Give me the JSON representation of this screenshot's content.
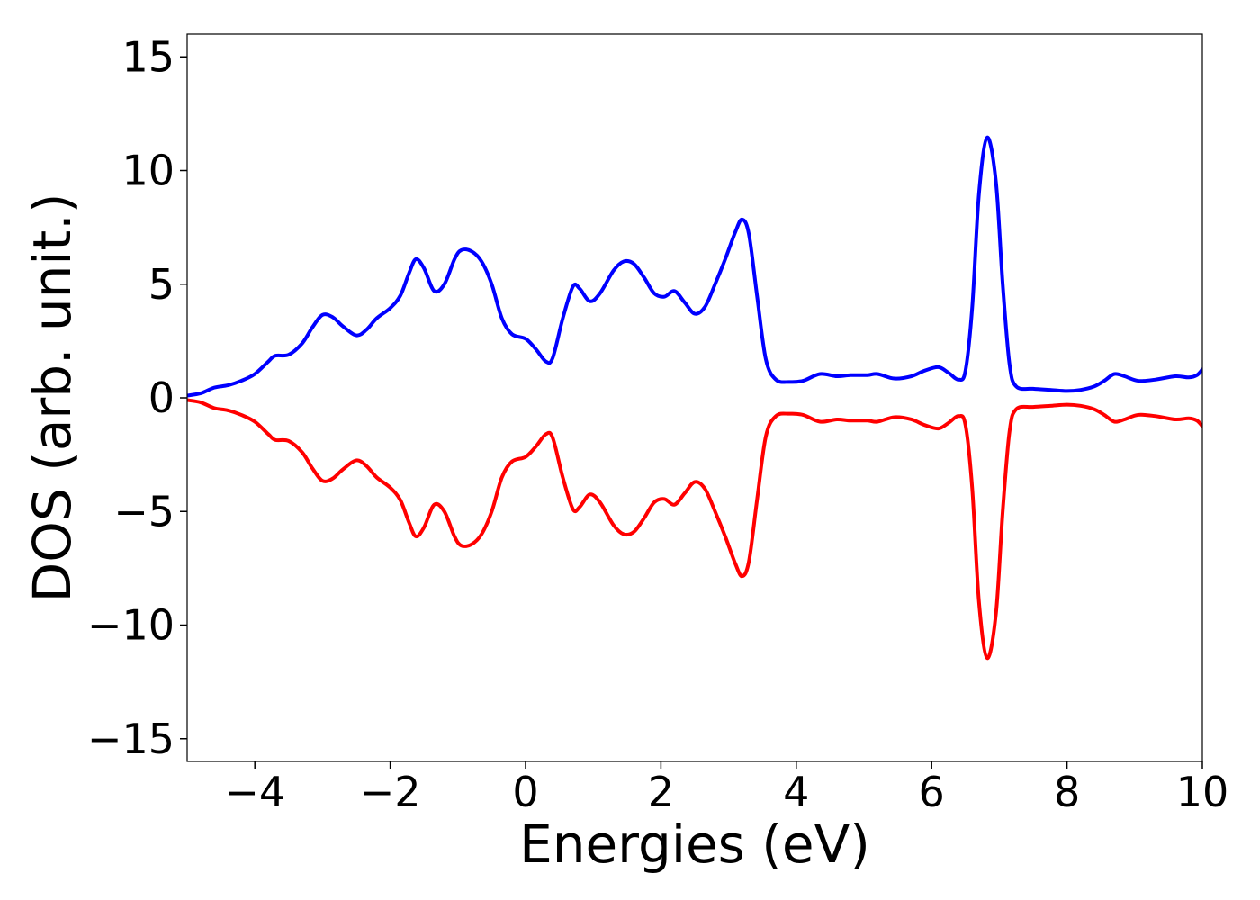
{
  "chart_data": {
    "type": "line",
    "title": "",
    "xlabel": "Energies (eV)",
    "ylabel": "DOS (arb. unit.)",
    "xlim": [
      -5,
      10
    ],
    "ylim": [
      -16,
      16
    ],
    "xticks": [
      -4,
      -2,
      0,
      2,
      4,
      6,
      8,
      10
    ],
    "xtick_labels": [
      "−4",
      "−2",
      "0",
      "2",
      "4",
      "6",
      "8",
      "10"
    ],
    "yticks": [
      15,
      10,
      5,
      0,
      -5,
      -10,
      -15
    ],
    "ytick_labels": [
      "15",
      "10",
      "5",
      "0",
      "−5",
      "−10",
      "−15"
    ],
    "grid": false,
    "legend": "none",
    "series": [
      {
        "color": "#0000ff",
        "points": [
          [
            -5.0,
            0.1
          ],
          [
            -4.8,
            0.2
          ],
          [
            -4.6,
            0.45
          ],
          [
            -4.4,
            0.55
          ],
          [
            -4.2,
            0.75
          ],
          [
            -4.0,
            1.05
          ],
          [
            -3.8,
            1.6
          ],
          [
            -3.7,
            1.85
          ],
          [
            -3.5,
            1.9
          ],
          [
            -3.3,
            2.4
          ],
          [
            -3.15,
            3.1
          ],
          [
            -3.0,
            3.65
          ],
          [
            -2.85,
            3.55
          ],
          [
            -2.7,
            3.15
          ],
          [
            -2.5,
            2.75
          ],
          [
            -2.35,
            3.0
          ],
          [
            -2.2,
            3.5
          ],
          [
            -2.0,
            3.95
          ],
          [
            -1.85,
            4.5
          ],
          [
            -1.72,
            5.5
          ],
          [
            -1.62,
            6.1
          ],
          [
            -1.5,
            5.7
          ],
          [
            -1.35,
            4.7
          ],
          [
            -1.2,
            5.0
          ],
          [
            -1.05,
            6.1
          ],
          [
            -0.95,
            6.5
          ],
          [
            -0.8,
            6.45
          ],
          [
            -0.65,
            6.0
          ],
          [
            -0.5,
            5.0
          ],
          [
            -0.35,
            3.5
          ],
          [
            -0.2,
            2.8
          ],
          [
            0.0,
            2.6
          ],
          [
            0.15,
            2.15
          ],
          [
            0.3,
            1.6
          ],
          [
            0.4,
            1.75
          ],
          [
            0.55,
            3.5
          ],
          [
            0.7,
            4.9
          ],
          [
            0.8,
            4.8
          ],
          [
            0.95,
            4.25
          ],
          [
            1.1,
            4.6
          ],
          [
            1.3,
            5.6
          ],
          [
            1.45,
            6.0
          ],
          [
            1.6,
            5.9
          ],
          [
            1.75,
            5.3
          ],
          [
            1.9,
            4.6
          ],
          [
            2.05,
            4.45
          ],
          [
            2.2,
            4.7
          ],
          [
            2.35,
            4.2
          ],
          [
            2.5,
            3.7
          ],
          [
            2.65,
            4.0
          ],
          [
            2.8,
            5.0
          ],
          [
            2.95,
            6.1
          ],
          [
            3.1,
            7.3
          ],
          [
            3.2,
            7.85
          ],
          [
            3.3,
            7.2
          ],
          [
            3.42,
            4.5
          ],
          [
            3.55,
            1.7
          ],
          [
            3.7,
            0.8
          ],
          [
            3.9,
            0.7
          ],
          [
            4.1,
            0.75
          ],
          [
            4.35,
            1.05
          ],
          [
            4.6,
            0.95
          ],
          [
            4.8,
            1.0
          ],
          [
            5.05,
            1.0
          ],
          [
            5.2,
            1.05
          ],
          [
            5.45,
            0.85
          ],
          [
            5.7,
            0.95
          ],
          [
            5.9,
            1.2
          ],
          [
            6.1,
            1.35
          ],
          [
            6.25,
            1.1
          ],
          [
            6.4,
            0.8
          ],
          [
            6.5,
            1.2
          ],
          [
            6.6,
            4.0
          ],
          [
            6.7,
            9.0
          ],
          [
            6.82,
            11.45
          ],
          [
            6.95,
            9.5
          ],
          [
            7.05,
            5.0
          ],
          [
            7.15,
            1.5
          ],
          [
            7.25,
            0.5
          ],
          [
            7.5,
            0.4
          ],
          [
            7.75,
            0.35
          ],
          [
            8.0,
            0.3
          ],
          [
            8.2,
            0.35
          ],
          [
            8.4,
            0.5
          ],
          [
            8.55,
            0.75
          ],
          [
            8.7,
            1.05
          ],
          [
            8.85,
            0.95
          ],
          [
            9.05,
            0.75
          ],
          [
            9.3,
            0.8
          ],
          [
            9.6,
            0.95
          ],
          [
            9.8,
            0.9
          ],
          [
            9.92,
            1.0
          ],
          [
            10.0,
            1.25
          ]
        ]
      },
      {
        "color": "#ff0000",
        "mirror_of_series": 0
      }
    ]
  }
}
